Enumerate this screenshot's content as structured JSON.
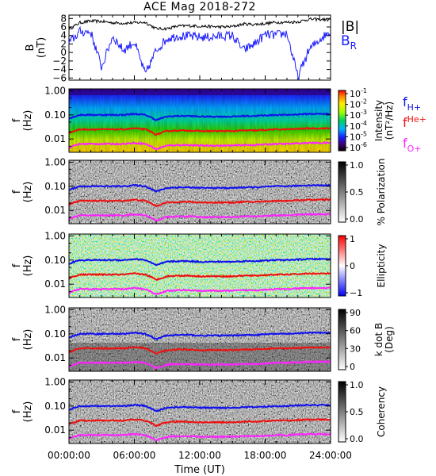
{
  "figure": {
    "title": "ACE Mag 2018-272",
    "xlabel": "Time (UT)",
    "xticks": [
      "00:00:00",
      "06:00:00",
      "12:00:00",
      "18:00:00",
      "24:00:00"
    ]
  },
  "colors": {
    "B_total": "#000000",
    "B_R": "#1a1aff",
    "f_H": "#1010ee",
    "f_He": "#ee1010",
    "f_O": "#ff22ff"
  },
  "chart_data": [
    {
      "type": "line",
      "panel": "B",
      "ylabel": [
        "B",
        "(nT)"
      ],
      "yticks": [
        8,
        6,
        4,
        2,
        0,
        -2,
        -4,
        -6
      ],
      "ylim": [
        -6.5,
        8.8
      ],
      "x_hours": [
        0,
        1,
        2,
        3,
        4,
        5,
        6,
        7,
        8,
        9,
        10,
        11,
        12,
        13,
        14,
        15,
        16,
        17,
        18,
        19,
        20,
        21,
        22,
        23,
        24
      ],
      "series": [
        {
          "name": "|B|",
          "values": [
            5.5,
            7.0,
            7.4,
            7.3,
            7.0,
            6.9,
            7.0,
            7.1,
            5.6,
            5.6,
            6.2,
            6.3,
            6.2,
            6.1,
            6.0,
            6.1,
            6.7,
            6.6,
            6.8,
            7.1,
            7.1,
            7.2,
            7.8,
            7.8,
            7.7
          ]
        },
        {
          "name": "B_R",
          "values": [
            2.2,
            4.9,
            4.8,
            -3.5,
            3.8,
            0.5,
            2.5,
            -5.2,
            0.5,
            3.3,
            3.9,
            3.8,
            3.6,
            3.6,
            3.9,
            4.0,
            0.5,
            2.0,
            4.2,
            4.1,
            4.5,
            -5.8,
            0.5,
            3.1,
            5.0
          ]
        }
      ],
      "legend": [
        "|B|",
        "B",
        "R"
      ]
    },
    {
      "type": "heatmap",
      "panel": "Intensity",
      "ylabel": [
        "f",
        "(Hz)"
      ],
      "yticks": [
        "1.00",
        "0.10",
        "0.01"
      ],
      "colorbar": {
        "label": [
          "Intensity",
          "(nT²/Hz)"
        ],
        "ticks": [
          "10",
          "10",
          "10",
          "10",
          "10",
          "10"
        ],
        "exponents": [
          "-1",
          "-2",
          "-3",
          "-4",
          "-5",
          "-6"
        ]
      },
      "legend": [
        {
          "base": "f",
          "sub": "H+"
        },
        {
          "base": "f",
          "sub": "He+"
        },
        {
          "base": "f",
          "sub": "O+"
        }
      ]
    },
    {
      "type": "heatmap",
      "panel": "Polarization",
      "ylabel": [
        "f",
        "(Hz)"
      ],
      "yticks": [
        "1.00",
        "0.10",
        "0.01"
      ],
      "colorbar": {
        "label": "% Polarization",
        "ticks": [
          "1.0",
          "0.5",
          "0.0"
        ]
      }
    },
    {
      "type": "heatmap",
      "panel": "Ellipticity",
      "ylabel": [
        "f",
        "(Hz)"
      ],
      "yticks": [
        "1.00",
        "0.10",
        "0.01"
      ],
      "colorbar": {
        "label": "Ellipticity",
        "ticks": [
          "1",
          "0",
          "−1"
        ]
      }
    },
    {
      "type": "heatmap",
      "panel": "k dot B",
      "ylabel": [
        "f",
        "(Hz)"
      ],
      "yticks": [
        "1.00",
        "0.10",
        "0.01"
      ],
      "colorbar": {
        "label": [
          "k dot B",
          "(Deg)"
        ],
        "ticks": [
          "90",
          "60",
          "30",
          "0"
        ]
      }
    },
    {
      "type": "heatmap",
      "panel": "Coherency",
      "ylabel": [
        "f",
        "(Hz)"
      ],
      "yticks": [
        "1.00",
        "0.10",
        "0.01"
      ],
      "colorbar": {
        "label": "Coherency",
        "ticks": [
          "1.0",
          "0.5",
          "0.0"
        ]
      }
    }
  ],
  "gyrofrequency_lines": {
    "x_hours": [
      0,
      1,
      2,
      3,
      4,
      5,
      6,
      7,
      8,
      9,
      10,
      11,
      12,
      13,
      14,
      15,
      16,
      17,
      18,
      19,
      20,
      21,
      22,
      23,
      24
    ],
    "f_H_plus_Hz": [
      0.07,
      0.1,
      0.1,
      0.1,
      0.1,
      0.1,
      0.11,
      0.1,
      0.06,
      0.085,
      0.09,
      0.09,
      0.085,
      0.085,
      0.085,
      0.085,
      0.09,
      0.09,
      0.095,
      0.1,
      0.1,
      0.105,
      0.11,
      0.11,
      0.11
    ]
  }
}
